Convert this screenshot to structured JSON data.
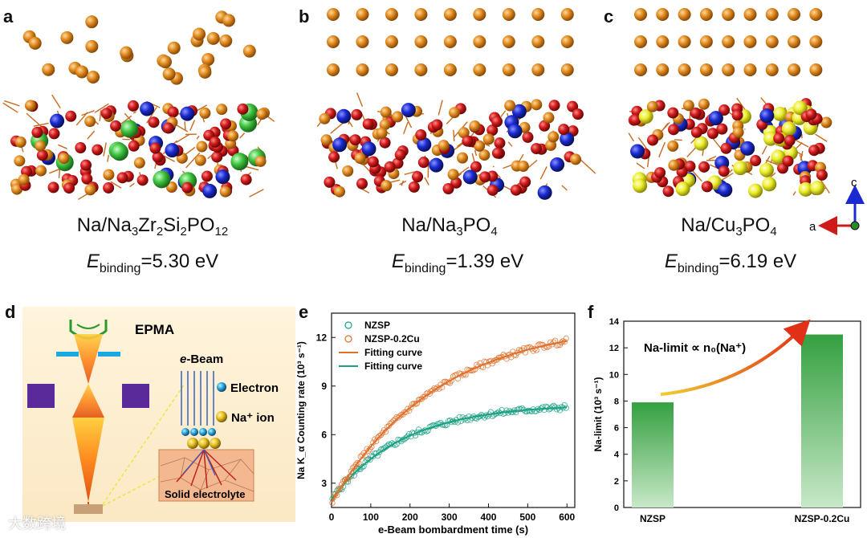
{
  "panels": {
    "a": {
      "letter": "a",
      "formula_parts": [
        "Na/Na",
        "3",
        "Zr",
        "2",
        "Si",
        "2",
        "PO",
        "12"
      ],
      "energy_label": "E",
      "energy_sub": "binding",
      "energy_value": "=5.30 eV"
    },
    "b": {
      "letter": "b",
      "formula_parts": [
        "Na/Na",
        "3",
        "PO",
        "4"
      ],
      "energy_label": "E",
      "energy_sub": "binding",
      "energy_value": "=1.39 eV"
    },
    "c": {
      "letter": "c",
      "formula_parts": [
        "Na/Cu",
        "3",
        "PO",
        "4"
      ],
      "energy_label": "E",
      "energy_sub": "binding",
      "energy_value": "=6.19 eV"
    },
    "d": {
      "letter": "d"
    },
    "e": {
      "letter": "e"
    },
    "f": {
      "letter": "f"
    }
  },
  "axes_triad": {
    "a_label": "a",
    "c_label": "c"
  },
  "epma": {
    "title": "EPMA",
    "ebeam_label": "e-Beam",
    "electron_label": "Electron",
    "na_ion_label": "Na⁺ ion",
    "electrolyte_label": "Solid electrolyte"
  },
  "colors": {
    "na_atom": "#e08a1e",
    "oxygen": "#d01a1a",
    "zr_blue": "#1a2ad0",
    "si_green": "#3ec23e",
    "cu_yellow": "#ecec2a",
    "nzsp_series": "#1aa082",
    "cu_series": "#e0702a",
    "bar_green": "#3aa845"
  },
  "watermark": "大数跨境",
  "chart_data": [
    {
      "type": "scatter",
      "panel": "e",
      "xlabel": "e-Beam bombardment time (s)",
      "ylabel": "Na K_α Counting rate (10³ s⁻¹)",
      "xlim": [
        0,
        620
      ],
      "ylim": [
        1.5,
        13.5
      ],
      "xticks": [
        0,
        100,
        200,
        300,
        400,
        500,
        600
      ],
      "yticks": [
        3,
        6,
        9,
        12
      ],
      "legend": [
        "NZSP",
        "NZSP-0.2Cu",
        "Fitting curve",
        "Fitting curve"
      ],
      "series": [
        {
          "name": "NZSP",
          "amplitude": 5.9,
          "rate": 0.0055,
          "offset": 2.0
        },
        {
          "name": "NZSP-0.2Cu",
          "amplitude": 11.2,
          "rate": 0.0037,
          "offset": 1.8
        }
      ]
    },
    {
      "type": "bar",
      "panel": "f",
      "categories": [
        "NZSP",
        "NZSP-0.2Cu"
      ],
      "values": [
        7.9,
        13.0
      ],
      "ylim": [
        0,
        14
      ],
      "yticks": [
        0,
        2,
        4,
        6,
        8,
        10,
        12,
        14
      ],
      "ylabel": "Na-limit (10³ s⁻¹)",
      "annotation": "Na-limit ∝ n₀(Na⁺)"
    }
  ]
}
